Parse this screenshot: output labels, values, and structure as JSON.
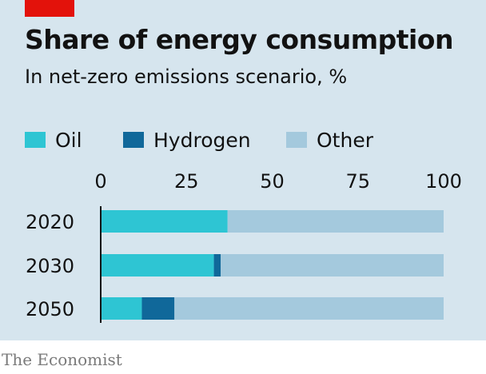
{
  "header": {
    "title": "Share of energy consumption",
    "subtitle": "In net-zero emissions scenario, %"
  },
  "legend": [
    {
      "label": "Oil",
      "color": "#2ec5d3"
    },
    {
      "label": "Hydrogen",
      "color": "#10689a"
    },
    {
      "label": "Other",
      "color": "#a4c9dd"
    }
  ],
  "source": "The Economist",
  "chart_data": {
    "type": "bar",
    "orientation": "horizontal",
    "stacked": true,
    "title": "Share of energy consumption",
    "subtitle": "In net-zero emissions scenario, %",
    "categories": [
      "2020",
      "2030",
      "2050"
    ],
    "series": [
      {
        "name": "Oil",
        "color": "#2ec5d3",
        "values": [
          37,
          33,
          12
        ]
      },
      {
        "name": "Hydrogen",
        "color": "#10689a",
        "values": [
          0,
          2,
          9.5
        ]
      },
      {
        "name": "Other",
        "color": "#a4c9dd",
        "values": [
          63,
          65,
          78.5
        ]
      }
    ],
    "xlim": [
      0,
      100
    ],
    "xticks": [
      "0",
      "25",
      "50",
      "75",
      "100"
    ],
    "grid": false,
    "legend_position": "top"
  }
}
